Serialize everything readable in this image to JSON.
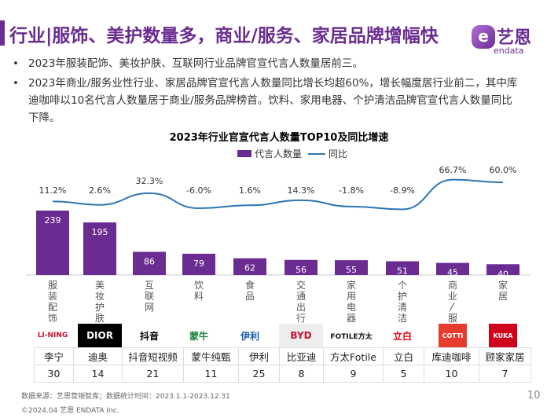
{
  "header": {
    "title": "行业|服饰、美护数量多，商业/服务、家居品牌增幅快",
    "logo_cn": "艺恩",
    "logo_en": "endata"
  },
  "bullets": [
    "2023年服装配饰、美妆护肤、互联网行业品牌官宣代言人数量居前三。",
    "2023年商业/服务业性行业、家居品牌官宣代言人数量同比增长均超60%，增长幅度居行业前二，其中库迪咖啡以10名代言人数量居于商业/服务品牌榜首。饮料、家用电器、个护清洁品牌官宣代言人数量同比下降。"
  ],
  "chart_data": {
    "type": "bar+line",
    "title": "2023年行业官宣代言人数量TOP10及同比增速",
    "legend": [
      "代言人数量",
      "同比"
    ],
    "legend_placement": "top",
    "categories": [
      "服装配饰",
      "美妆护肤",
      "互联网",
      "饮料",
      "食品",
      "交通出行",
      "家用电器",
      "个护清洁",
      "商业/服务",
      "家居"
    ],
    "series": [
      {
        "name": "代言人数量",
        "type": "bar",
        "values": [
          239,
          195,
          86,
          79,
          62,
          56,
          55,
          51,
          45,
          40
        ],
        "color": "#6a2c91"
      },
      {
        "name": "同比",
        "type": "line",
        "values": [
          11.2,
          2.6,
          32.3,
          -6.0,
          1.6,
          14.3,
          -1.8,
          -8.9,
          66.7,
          60.0
        ],
        "labels": [
          "11.2%",
          "2.6%",
          "32.3%",
          "-6.0%",
          "1.6%",
          "14.3%",
          "-1.8%",
          "-8.9%",
          "66.7%",
          "60.0%"
        ],
        "color": "#2e75b6"
      }
    ]
  },
  "brands": {
    "logos": [
      "LI-NING",
      "DIOR",
      "抖音",
      "蒙牛",
      "伊利",
      "BYD",
      "FOTILE方太",
      "立白",
      "COTTI",
      "KUKA"
    ],
    "names": [
      "李宁",
      "迪奥",
      "抖音短视频",
      "蒙牛纯甄",
      "伊利",
      "比亚迪",
      "方太Fotile",
      "立白",
      "库迪咖啡",
      "顾家家居"
    ],
    "counts": [
      "30",
      "14",
      "21",
      "11",
      "25",
      "8",
      "9",
      "5",
      "10",
      "7"
    ]
  },
  "footer": {
    "source": "数据来源：艺恩营销智库；数据统计时间：2023.1.1-2023.12.31",
    "copyright": "©2024.04 艺恩 ENDATA Inc.",
    "page": "10"
  }
}
